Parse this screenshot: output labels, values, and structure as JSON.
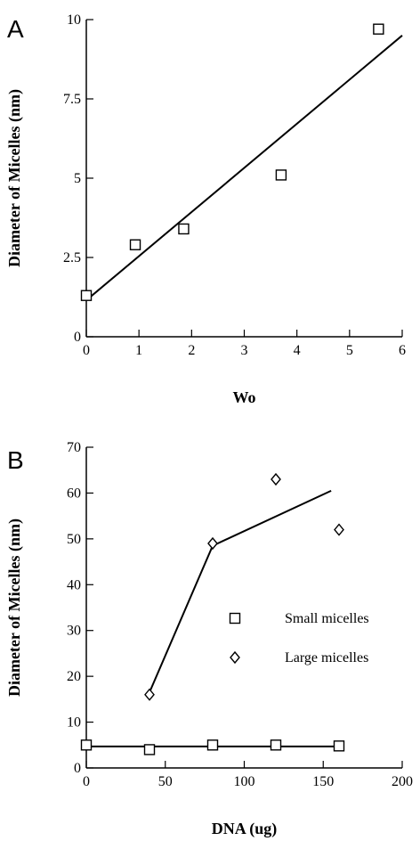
{
  "chart_data": [
    {
      "type": "scatter",
      "panel_label": "A",
      "xlabel": "Wo",
      "ylabel": "Diameter of Micelles (nm)",
      "xlim": [
        0,
        6
      ],
      "ylim": [
        0,
        10
      ],
      "xticks": [
        "0",
        "1",
        "2",
        "3",
        "4",
        "5",
        "6"
      ],
      "yticks": [
        "0",
        "2.5",
        "5",
        "7.5",
        "10"
      ],
      "series": [
        {
          "marker": "square",
          "x": [
            0,
            0.93,
            1.85,
            3.7,
            5.55
          ],
          "y": [
            1.3,
            2.9,
            3.4,
            5.1,
            9.7
          ]
        }
      ],
      "fit_line": {
        "x": [
          0,
          6
        ],
        "y": [
          1.15,
          9.5
        ]
      }
    },
    {
      "type": "scatter",
      "panel_label": "B",
      "xlabel": "DNA (ug)",
      "ylabel": "Diameter of Micelles (nm)",
      "xlim": [
        0,
        200
      ],
      "ylim": [
        0,
        70
      ],
      "xticks": [
        "0",
        "50",
        "100",
        "150",
        "200"
      ],
      "yticks": [
        "0",
        "10",
        "20",
        "30",
        "40",
        "50",
        "60",
        "70"
      ],
      "series": [
        {
          "name": "Small micelles",
          "marker": "square",
          "x": [
            0,
            40,
            80,
            120,
            160
          ],
          "y": [
            5,
            4,
            5,
            5,
            4.8
          ],
          "line": {
            "x": [
              0,
              160
            ],
            "y": [
              4.7,
              4.7
            ]
          }
        },
        {
          "name": "Large micelles",
          "marker": "diamond",
          "x": [
            40,
            80,
            120,
            160
          ],
          "y": [
            16,
            49,
            63,
            52
          ],
          "line": {
            "x": [
              40,
              80,
              155
            ],
            "y": [
              16.5,
              48.5,
              60.5
            ]
          }
        }
      ],
      "legend_placement": "center-right"
    }
  ]
}
